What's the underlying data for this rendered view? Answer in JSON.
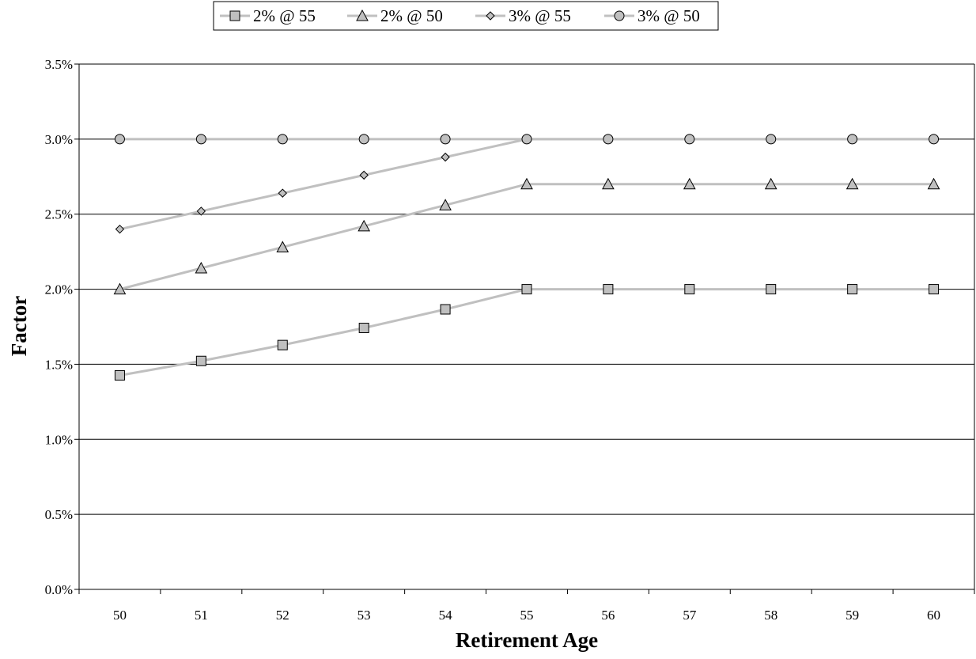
{
  "chart_data": {
    "type": "line",
    "title": "",
    "xlabel": "Retirement Age",
    "ylabel": "Factor",
    "categories": [
      "50",
      "51",
      "52",
      "53",
      "54",
      "55",
      "56",
      "57",
      "58",
      "59",
      "60"
    ],
    "ylim": [
      0,
      3.5
    ],
    "yticks": [
      "0.0%",
      "0.5%",
      "1.0%",
      "1.5%",
      "2.0%",
      "2.5%",
      "3.0%",
      "3.5%"
    ],
    "grid": "horizontal",
    "legend_position": "top",
    "series": [
      {
        "name": "2% @ 55",
        "marker": "square",
        "values": [
          1.426,
          1.522,
          1.628,
          1.742,
          1.866,
          2.0,
          2.0,
          2.0,
          2.0,
          2.0,
          2.0
        ]
      },
      {
        "name": "2% @ 50",
        "marker": "triangle",
        "values": [
          2.0,
          2.14,
          2.28,
          2.42,
          2.56,
          2.7,
          2.7,
          2.7,
          2.7,
          2.7,
          2.7
        ]
      },
      {
        "name": "3% @ 55",
        "marker": "diamond",
        "values": [
          2.4,
          2.52,
          2.64,
          2.76,
          2.88,
          3.0,
          3.0,
          3.0,
          3.0,
          3.0,
          3.0
        ]
      },
      {
        "name": "3% @ 50",
        "marker": "circle",
        "values": [
          3.0,
          3.0,
          3.0,
          3.0,
          3.0,
          3.0,
          3.0,
          3.0,
          3.0,
          3.0,
          3.0
        ]
      }
    ],
    "colors": {
      "line": "#c0c0c0",
      "marker_fill": "#c0c0c0",
      "marker_stroke": "#000000",
      "grid": "#000000"
    }
  }
}
